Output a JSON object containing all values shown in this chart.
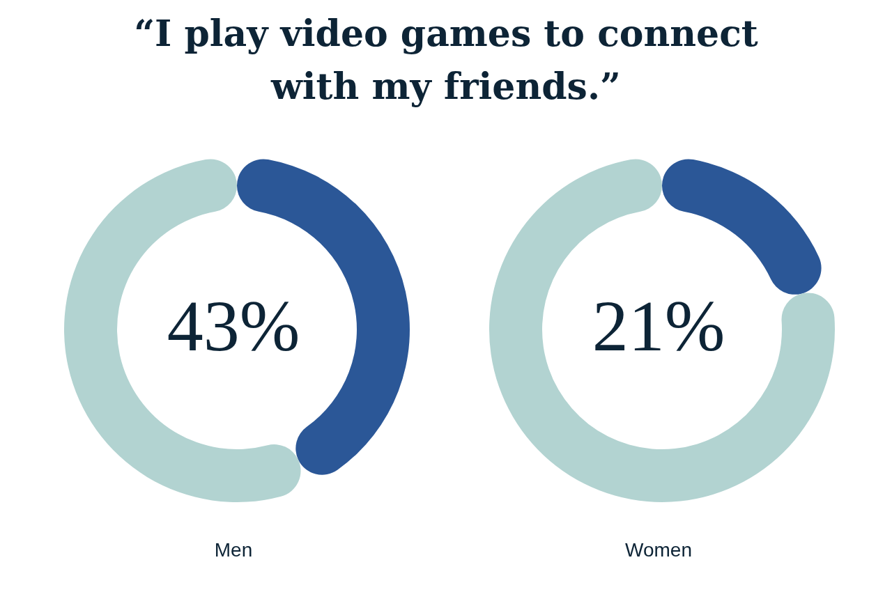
{
  "chart_data": [
    {
      "type": "donut",
      "title": "“I play video games to connect with my friends.”",
      "xlabel": "Men",
      "categories": [
        null,
        null
      ],
      "values": [
        43,
        57
      ],
      "colors": [
        "#2b5797",
        "#b2d3d1"
      ],
      "annotations": [
        "43%"
      ]
    },
    {
      "type": "donut",
      "xlabel": "Women",
      "categories": [
        null,
        null
      ],
      "values": [
        21,
        79
      ],
      "colors": [
        "#2b5797",
        "#b2d3d1"
      ],
      "annotations": [
        "21%"
      ]
    }
  ]
}
